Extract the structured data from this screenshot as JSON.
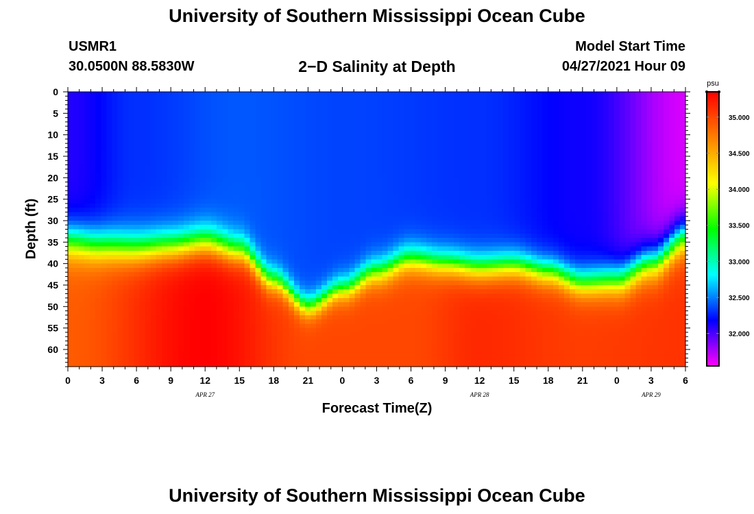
{
  "header": {
    "title": "University of Southern Mississippi Ocean Cube",
    "station": "USMR1",
    "coordinates": "30.0500N  88.5830W",
    "plot_title": "2−D Salinity at Depth",
    "model_start_label": "Model Start Time",
    "model_start_value": "04/27/2021 Hour 09"
  },
  "footer": {
    "title": "University of Southern Mississippi Ocean Cube"
  },
  "chart_data": {
    "type": "heatmap",
    "title": "2−D Salinity at Depth",
    "xlabel": "Forecast Time(Z)",
    "ylabel": "Depth (ft)",
    "x_range_hours": [
      0,
      54
    ],
    "x_ticks": [
      "0",
      "3",
      "6",
      "9",
      "12",
      "15",
      "18",
      "21",
      "0",
      "3",
      "6",
      "9",
      "12",
      "15",
      "18",
      "21",
      "0",
      "3",
      "6"
    ],
    "date_labels": [
      {
        "hour": 12,
        "text": "APR  27"
      },
      {
        "hour": 36,
        "text": "APR  28"
      },
      {
        "hour": 51,
        "text": "APR  29"
      }
    ],
    "y_range_ft": [
      0,
      64
    ],
    "y_ticks": [
      0,
      5,
      10,
      15,
      20,
      25,
      30,
      35,
      40,
      45,
      50,
      55,
      60
    ],
    "colorbar": {
      "unit": "psu",
      "min": 31.55,
      "max": 35.35,
      "ticks": [
        "32.000",
        "32.500",
        "33.000",
        "33.500",
        "34.000",
        "34.500",
        "35.000"
      ]
    },
    "halocline_depth_ft": [
      {
        "hour": 0,
        "depth": 35
      },
      {
        "hour": 3,
        "depth": 36
      },
      {
        "hour": 6,
        "depth": 36.5
      },
      {
        "hour": 9,
        "depth": 36
      },
      {
        "hour": 12,
        "depth": 35
      },
      {
        "hour": 15,
        "depth": 37
      },
      {
        "hour": 18,
        "depth": 44
      },
      {
        "hour": 21,
        "depth": 50
      },
      {
        "hour": 24,
        "depth": 46
      },
      {
        "hour": 27,
        "depth": 42
      },
      {
        "hour": 30,
        "depth": 39
      },
      {
        "hour": 33,
        "depth": 40
      },
      {
        "hour": 36,
        "depth": 41
      },
      {
        "hour": 39,
        "depth": 40.5
      },
      {
        "hour": 42,
        "depth": 42
      },
      {
        "hour": 45,
        "depth": 44.5
      },
      {
        "hour": 48,
        "depth": 44
      },
      {
        "hour": 51,
        "depth": 40
      },
      {
        "hour": 54,
        "depth": 34
      }
    ],
    "halocline_width_ft": [
      {
        "hour": 0,
        "width": 10
      },
      {
        "hour": 12,
        "width": 9
      },
      {
        "hour": 21,
        "width": 6.5
      },
      {
        "hour": 30,
        "width": 8
      },
      {
        "hour": 42,
        "width": 8
      },
      {
        "hour": 54,
        "width": 10
      }
    ],
    "surface_salinity_psu": [
      {
        "hour": 0,
        "value": 32.1
      },
      {
        "hour": 6,
        "value": 32.3
      },
      {
        "hour": 15,
        "value": 32.4
      },
      {
        "hour": 24,
        "value": 32.35
      },
      {
        "hour": 36,
        "value": 32.3
      },
      {
        "hour": 45,
        "value": 32.15
      },
      {
        "hour": 54,
        "value": 31.65
      }
    ],
    "bottom_salinity_psu": [
      {
        "hour": 0,
        "value": 34.9
      },
      {
        "hour": 12,
        "value": 35.35
      },
      {
        "hour": 21,
        "value": 35.0
      },
      {
        "hour": 30,
        "value": 35.0
      },
      {
        "hour": 36,
        "value": 35.15
      },
      {
        "hour": 45,
        "value": 35.05
      },
      {
        "hour": 54,
        "value": 35.1
      }
    ]
  },
  "colors": {
    "scale": [
      "#ff00ff",
      "#0000ff",
      "#00ffff",
      "#00ff00",
      "#ffff00",
      "#ff8000",
      "#ff0000"
    ]
  }
}
